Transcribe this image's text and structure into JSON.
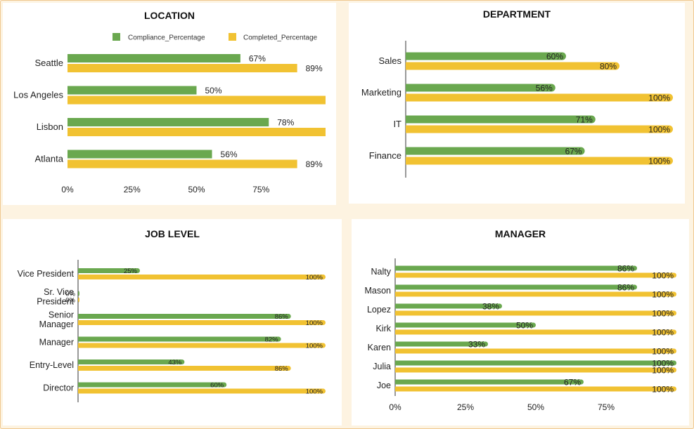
{
  "colors": {
    "compliance": "#6aa84f",
    "completed": "#f1c232"
  },
  "charts": {
    "location": {
      "title": "LOCATION",
      "legend": [
        "Compliance_Percentage",
        "Completed_Percentage"
      ]
    },
    "department": {
      "title": "DEPARTMENT"
    },
    "job_level": {
      "title": "JOB LEVEL"
    },
    "manager": {
      "title": "MANAGER"
    }
  },
  "chart_data": [
    {
      "type": "bar",
      "orientation": "horizontal",
      "title": "LOCATION",
      "categories": [
        "Seattle",
        "Los Angeles",
        "Lisbon",
        "Atlanta"
      ],
      "series": [
        {
          "name": "Compliance_Percentage",
          "values": [
            67,
            50,
            78,
            56
          ],
          "labels": [
            "67%",
            "50%",
            "78%",
            "56%"
          ]
        },
        {
          "name": "Completed_Percentage",
          "values": [
            89,
            100,
            100,
            89
          ],
          "labels": [
            "89%",
            "",
            "",
            "89%"
          ]
        }
      ],
      "x_ticks": [
        "0%",
        "25%",
        "50%",
        "75%"
      ],
      "xlim": [
        0,
        100
      ],
      "legend_position": "top-right"
    },
    {
      "type": "bar",
      "orientation": "horizontal",
      "title": "DEPARTMENT",
      "categories": [
        "Sales",
        "Marketing",
        "IT",
        "Finance"
      ],
      "series": [
        {
          "values": [
            60,
            56,
            71,
            67
          ],
          "labels": [
            "60%",
            "56%",
            "71%",
            "67%"
          ]
        },
        {
          "values": [
            80,
            100,
            100,
            100
          ],
          "labels": [
            "80%",
            "100%",
            "100%",
            "100%"
          ]
        }
      ],
      "xlim": [
        0,
        100
      ]
    },
    {
      "type": "bar",
      "orientation": "horizontal",
      "title": "JOB LEVEL",
      "categories": [
        "Vice President",
        "Sr. Vice President",
        "Senior Manager",
        "Manager",
        "Entry-Level",
        "Director"
      ],
      "series": [
        {
          "values": [
            25,
            0,
            86,
            82,
            43,
            60
          ],
          "labels": [
            "25%",
            "0%",
            "86%",
            "82%",
            "43%",
            "60%"
          ]
        },
        {
          "values": [
            100,
            0,
            100,
            100,
            86,
            100
          ],
          "labels": [
            "100%",
            "0%",
            "100%",
            "100%",
            "86%",
            "100%"
          ]
        }
      ],
      "xlim": [
        0,
        100
      ]
    },
    {
      "type": "bar",
      "orientation": "horizontal",
      "title": "MANAGER",
      "categories": [
        "Nalty",
        "Mason",
        "Lopez",
        "Kirk",
        "Karen",
        "Julia",
        "Joe"
      ],
      "series": [
        {
          "values": [
            86,
            86,
            38,
            50,
            33,
            100,
            67
          ],
          "labels": [
            "86%",
            "86%",
            "38%",
            "50%",
            "33%",
            "100%",
            "67%"
          ]
        },
        {
          "values": [
            100,
            100,
            100,
            100,
            100,
            100,
            100
          ],
          "labels": [
            "100%",
            "100%",
            "100%",
            "100%",
            "100%",
            "100%",
            "100%"
          ]
        }
      ],
      "x_ticks": [
        "0%",
        "25%",
        "50%",
        "75%"
      ],
      "xlim": [
        0,
        100
      ]
    }
  ]
}
